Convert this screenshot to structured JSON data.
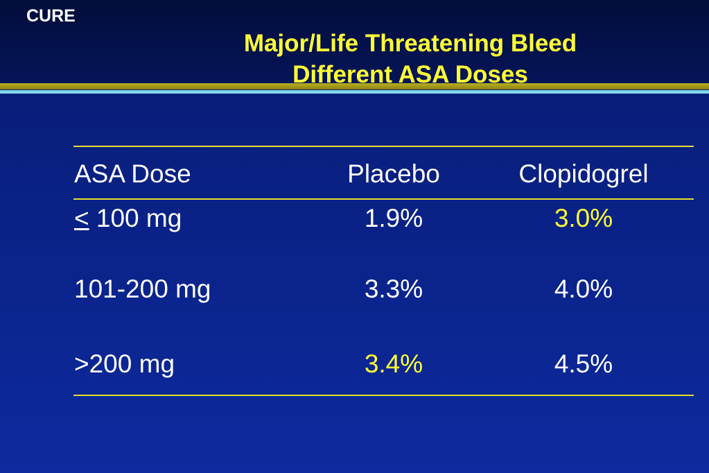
{
  "slide": {
    "corner_label": "CURE",
    "title_line1": "Major/Life Threatening Bleed",
    "title_line2": "Different ASA Doses",
    "colors": {
      "background": "#0a2184",
      "title": "#ffff33",
      "highlight": "#ffff33",
      "text": "#ffffff",
      "rule_gold": "#b8b020",
      "rule_cyan": "#7fd6ea"
    }
  },
  "table": {
    "headers": [
      "ASA Dose",
      "Placebo",
      "Clopidogrel"
    ],
    "rows": [
      {
        "dose_prefix": "<",
        "dose_text": " 100 mg",
        "placebo": "1.9%",
        "clopidogrel": "3.0%",
        "highlight": "clopidogrel"
      },
      {
        "dose_prefix": "",
        "dose_text": "101-200 mg",
        "placebo": "3.3%",
        "clopidogrel": "4.0%",
        "highlight": ""
      },
      {
        "dose_prefix": "",
        "dose_text": ">200 mg",
        "placebo": "3.4%",
        "clopidogrel": "4.5%",
        "highlight": "placebo"
      }
    ]
  }
}
